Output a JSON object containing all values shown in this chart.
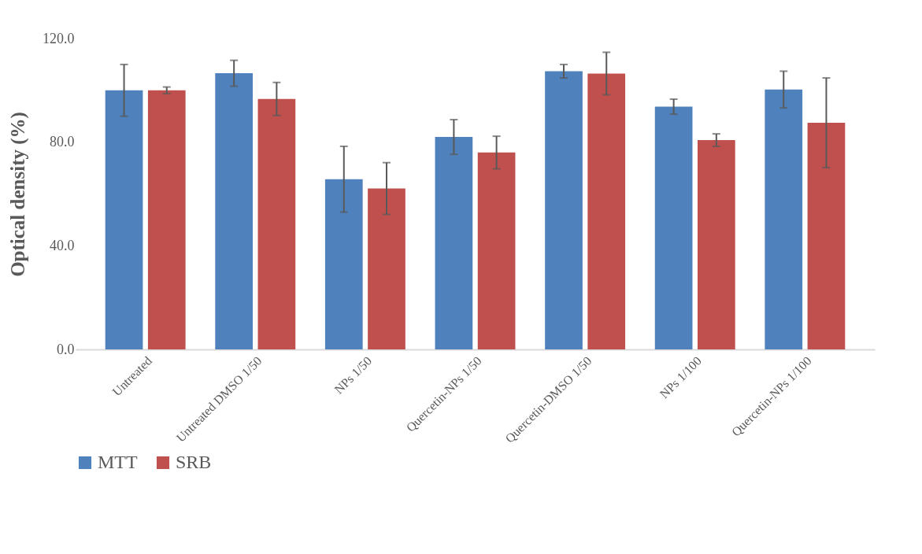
{
  "chart_data": {
    "type": "bar",
    "ylabel": "Optical density (%)",
    "categories": [
      "Untreated",
      "Untreated DMSO 1/50",
      "NPs 1/50",
      "Quercetin-NPs 1/50",
      "Quercetin-DMSO 1/50",
      "NPs 1/100",
      "Quercetin-NPs 1/100"
    ],
    "series": [
      {
        "name": "MTT",
        "color": "#4f81bd",
        "values": [
          100,
          106.6,
          65.7,
          82,
          107.4,
          93.7,
          100.3
        ],
        "errors": [
          10,
          5,
          12.7,
          6.7,
          2.6,
          2.9,
          7.1
        ]
      },
      {
        "name": "SRB",
        "color": "#c0504d",
        "values": [
          100,
          96.7,
          62.1,
          76,
          106.5,
          80.8,
          87.5
        ],
        "errors": [
          1.3,
          6.4,
          10,
          6.3,
          8.2,
          2.4,
          17.3
        ]
      }
    ],
    "ylim": [
      0,
      120
    ],
    "yticks": [
      {
        "value": 0,
        "label": "0.0"
      },
      {
        "value": 40,
        "label": "40.0"
      },
      {
        "value": 80,
        "label": "80.0"
      },
      {
        "value": 120,
        "label": "120.0"
      }
    ],
    "grid": false,
    "legend": "bottom"
  }
}
